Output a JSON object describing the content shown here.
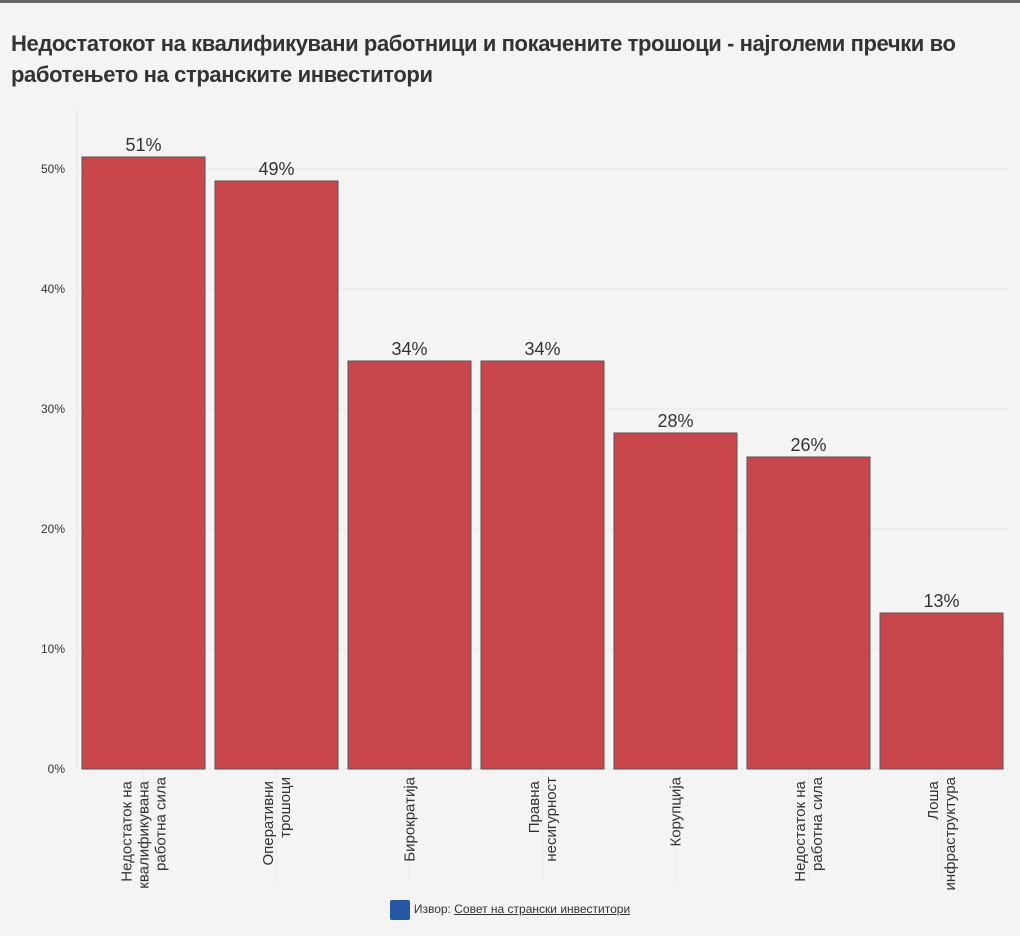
{
  "chart_data": {
    "type": "bar",
    "title": "Недостатокот на квалификувани работници и покачените трошоци - најголеми пречки во работењето на странските инвеститори",
    "categories": [
      "Недостаток на квалификувана работна сила",
      "Оперативни трошоци",
      "Бирократија",
      "Правна несигурност",
      "Корупција",
      "Недостаток на работна сила",
      "Лоша инфраструктура"
    ],
    "values": [
      51,
      49,
      34,
      34,
      28,
      26,
      13
    ],
    "value_labels": [
      "51%",
      "49%",
      "34%",
      "34%",
      "28%",
      "26%",
      "13%"
    ],
    "color": "#c9474a",
    "ylim": [
      0,
      55
    ],
    "yticks": [
      {
        "value": 0,
        "label": "0%"
      },
      {
        "value": 10,
        "label": "10%"
      },
      {
        "value": 20,
        "label": "20%"
      },
      {
        "value": 30,
        "label": "30%"
      },
      {
        "value": 40,
        "label": "40%"
      },
      {
        "value": 50,
        "label": "50%"
      }
    ],
    "grid": true,
    "source_label": "Извор:",
    "source": "Совет на странски инвеститори"
  }
}
